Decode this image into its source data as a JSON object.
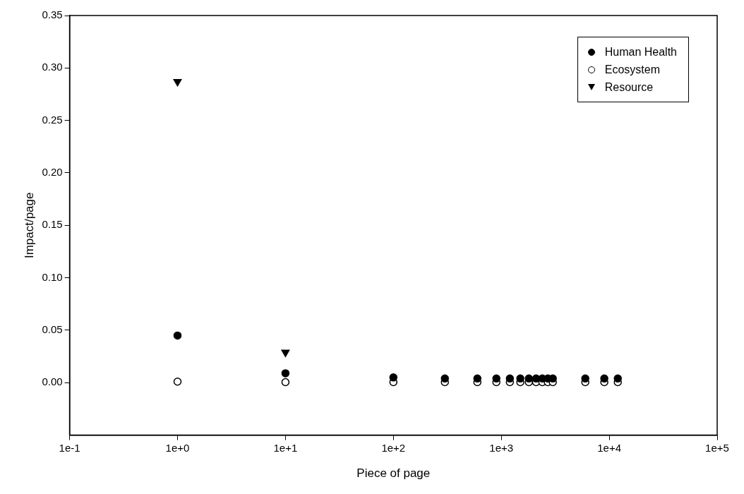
{
  "chart_data": {
    "type": "scatter",
    "xlabel": "Piece of page",
    "ylabel": "Impact/page",
    "log": "x",
    "grid": false,
    "legend": "top right",
    "xlim": [
      0.1,
      100000
    ],
    "xticks": [
      {
        "value": 0.1,
        "label": "1e-1"
      },
      {
        "value": 1,
        "label": "1e+0"
      },
      {
        "value": 10,
        "label": "1e+1"
      },
      {
        "value": 100,
        "label": "1e+2"
      },
      {
        "value": 1000,
        "label": "1e+3"
      },
      {
        "value": 10000,
        "label": "1e+4"
      },
      {
        "value": 100000,
        "label": "1e+5"
      }
    ],
    "ylim": [
      -0.05,
      0.35
    ],
    "yticks": [
      {
        "value": 0,
        "label": "0.00"
      },
      {
        "value": 0.05,
        "label": "0.05"
      },
      {
        "value": 0.1,
        "label": "0.10"
      },
      {
        "value": 0.15,
        "label": "0.15"
      },
      {
        "value": 0.2,
        "label": "0.20"
      },
      {
        "value": 0.25,
        "label": "0.25"
      },
      {
        "value": 0.3,
        "label": "0.30"
      },
      {
        "value": 0.35,
        "label": "0.35"
      }
    ],
    "x": [
      1,
      10,
      100,
      300,
      600,
      900,
      1200,
      1500,
      1800,
      2100,
      2400,
      2700,
      3000,
      6000,
      9000,
      12000
    ],
    "series": [
      {
        "name": "Human Health",
        "color": "#000000",
        "marker": "circle",
        "values": [
          0.045,
          0.009,
          0.005,
          0.004,
          0.004,
          0.004,
          0.004,
          0.004,
          0.004,
          0.004,
          0.004,
          0.004,
          0.004,
          0.004,
          0.004,
          0.004
        ]
      },
      {
        "name": "Ecosystem",
        "color": "#ffffff",
        "marker": "circle",
        "values": [
          0.001,
          0.0005,
          0.0005,
          0.0005,
          0.0005,
          0.0005,
          0.0005,
          0.0005,
          0.0005,
          0.0005,
          0.0005,
          0.0005,
          0.0005,
          0.0005,
          0.0005,
          0.0005
        ]
      },
      {
        "name": "Resource",
        "color": "#000000",
        "marker": "triangle",
        "values": [
          0.287,
          0.029,
          null,
          null,
          null,
          null,
          null,
          null,
          null,
          null,
          null,
          null,
          null,
          null,
          null,
          null
        ]
      }
    ]
  }
}
